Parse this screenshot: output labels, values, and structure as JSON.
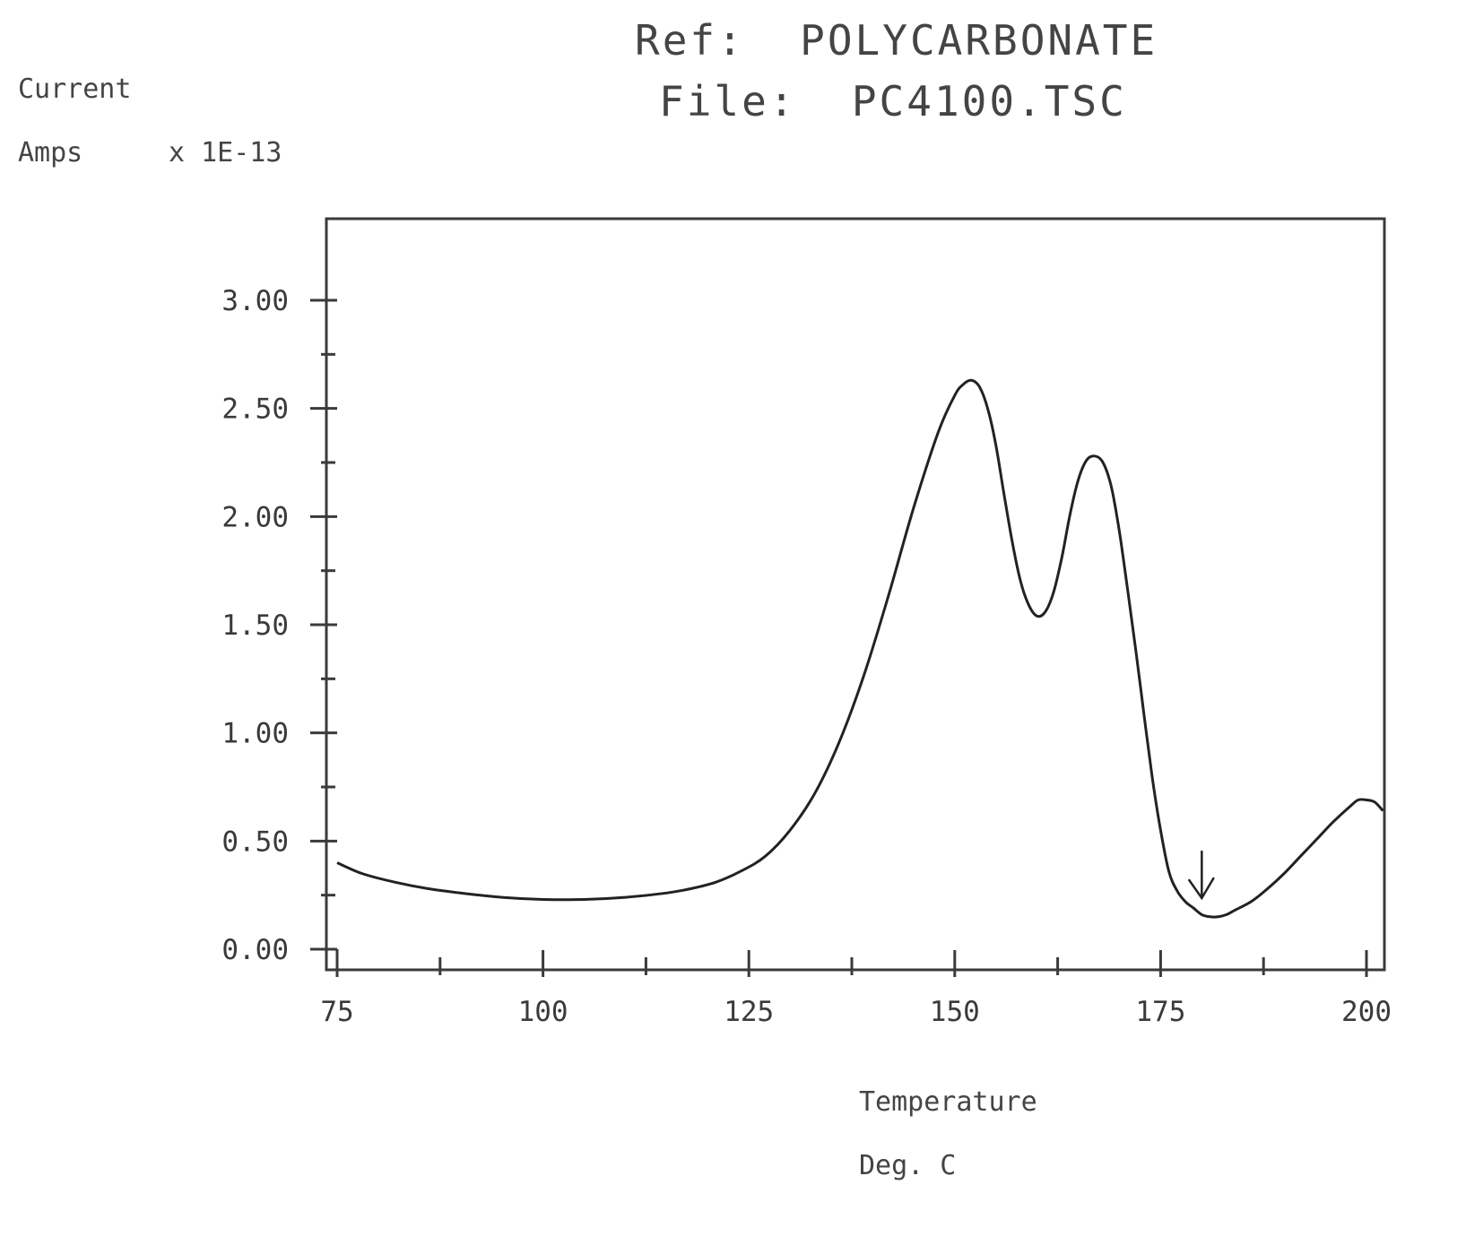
{
  "chart_data": {
    "type": "line",
    "title_line1": "Ref:  POLYCARBONATE",
    "title_line2": "File:  PC4100.TSC",
    "ylabel_line1": "Current",
    "ylabel_line2": "Amps",
    "y_scale_label": "x 1E-13",
    "xlabel_line1": "Temperature",
    "xlabel_line2": "Deg. C",
    "xlim": [
      75,
      200
    ],
    "ylim": [
      0.0,
      3.0
    ],
    "x_ticks": [
      "75",
      "100",
      "125",
      "150",
      "175",
      "200"
    ],
    "y_ticks": [
      "0.00",
      "0.50",
      "1.00",
      "1.50",
      "2.00",
      "2.50",
      "3.00"
    ],
    "grid": false,
    "series": [
      {
        "x": [
          75,
          78,
          82,
          86,
          90,
          95,
          100,
          105,
          110,
          115,
          118,
          121,
          124,
          127,
          130,
          133,
          136,
          139,
          142,
          145,
          148,
          150,
          151,
          152,
          153,
          154,
          155,
          156,
          157,
          158,
          159,
          160,
          161,
          162,
          163,
          164,
          165,
          166,
          167,
          168,
          169,
          170,
          171,
          172,
          173,
          174,
          175,
          176,
          177,
          178,
          179,
          180,
          181,
          182,
          183,
          184,
          186,
          188,
          190,
          192,
          194,
          196,
          198,
          199,
          200,
          201,
          202
        ],
        "y": [
          0.4,
          0.35,
          0.31,
          0.28,
          0.26,
          0.24,
          0.23,
          0.23,
          0.24,
          0.26,
          0.28,
          0.31,
          0.36,
          0.43,
          0.55,
          0.72,
          0.96,
          1.27,
          1.64,
          2.04,
          2.39,
          2.56,
          2.61,
          2.63,
          2.6,
          2.5,
          2.33,
          2.1,
          1.88,
          1.7,
          1.59,
          1.54,
          1.56,
          1.65,
          1.81,
          2.01,
          2.17,
          2.26,
          2.28,
          2.25,
          2.14,
          1.93,
          1.66,
          1.38,
          1.08,
          0.79,
          0.55,
          0.36,
          0.27,
          0.22,
          0.19,
          0.16,
          0.15,
          0.15,
          0.16,
          0.18,
          0.22,
          0.28,
          0.35,
          0.43,
          0.51,
          0.59,
          0.66,
          0.69,
          0.69,
          0.68,
          0.64
        ]
      }
    ],
    "annotation": "arrow-marker"
  }
}
